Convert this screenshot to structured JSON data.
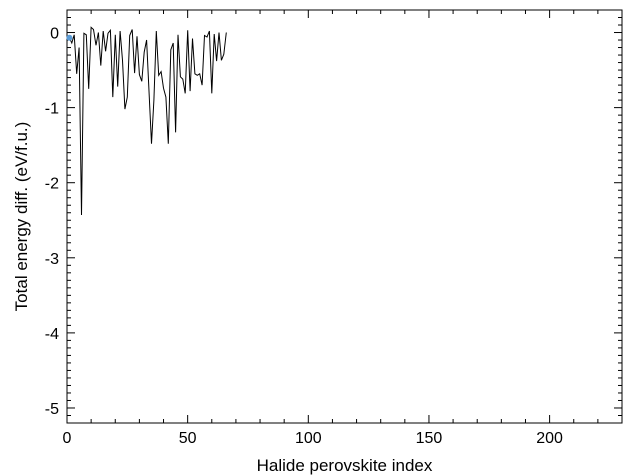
{
  "chart_data": {
    "type": "line",
    "title": "",
    "xlabel": "Halide perovskite index",
    "ylabel": "Total energy diff. (eV/f.u.)",
    "xlim": [
      0,
      230
    ],
    "ylim": [
      -5.2,
      0.3
    ],
    "x_ticks": [
      0,
      50,
      100,
      150,
      200
    ],
    "y_ticks": [
      0,
      -1,
      -2,
      -3,
      -4,
      -5
    ],
    "x_tick_labels": [
      "0",
      "50",
      "100",
      "150",
      "200"
    ],
    "y_tick_labels": [
      "0",
      "-1",
      "-2",
      "-3",
      "-4",
      "-5"
    ],
    "grid": false,
    "legend": "none",
    "series": [
      {
        "color": "#000000",
        "marker_color": "#5b9bd5",
        "x": [
          1,
          2,
          3,
          4,
          5,
          6,
          7,
          8,
          9,
          10,
          11,
          12,
          13,
          14,
          15,
          16,
          17,
          18,
          19,
          20,
          21,
          22,
          23,
          24,
          25,
          26,
          27,
          28,
          29,
          30,
          31,
          32,
          33,
          34,
          35,
          36,
          37,
          38,
          39,
          40,
          41,
          42,
          43,
          44,
          45,
          46,
          47,
          48,
          49,
          50,
          51,
          52,
          53,
          54,
          55,
          56,
          57,
          58,
          59,
          60,
          61,
          62,
          63,
          64,
          65,
          66
        ],
        "y": [
          -0.07,
          -0.14,
          -0.03,
          -0.55,
          -0.2,
          -2.43,
          -0.01,
          -0.03,
          -0.75,
          0.07,
          0.04,
          -0.17,
          0.0,
          -0.44,
          0.02,
          -0.25,
          -0.01,
          0.03,
          -0.86,
          -0.03,
          -0.72,
          0.02,
          -0.37,
          -1.02,
          -0.86,
          -0.04,
          0.04,
          -0.54,
          -0.05,
          -0.56,
          -0.65,
          -0.26,
          -0.1,
          -0.78,
          -1.48,
          -0.9,
          0.02,
          -0.57,
          -0.52,
          -0.74,
          -0.86,
          -1.48,
          -0.23,
          -0.14,
          -1.33,
          -0.03,
          -0.59,
          -0.62,
          -0.81,
          0.03,
          -0.78,
          -0.08,
          -0.55,
          -0.57,
          -0.55,
          -0.7,
          -0.04,
          -0.06,
          0.02,
          -0.81,
          -0.02,
          -0.38,
          0.0,
          -0.37,
          -0.29,
          0.0
        ]
      }
    ]
  }
}
